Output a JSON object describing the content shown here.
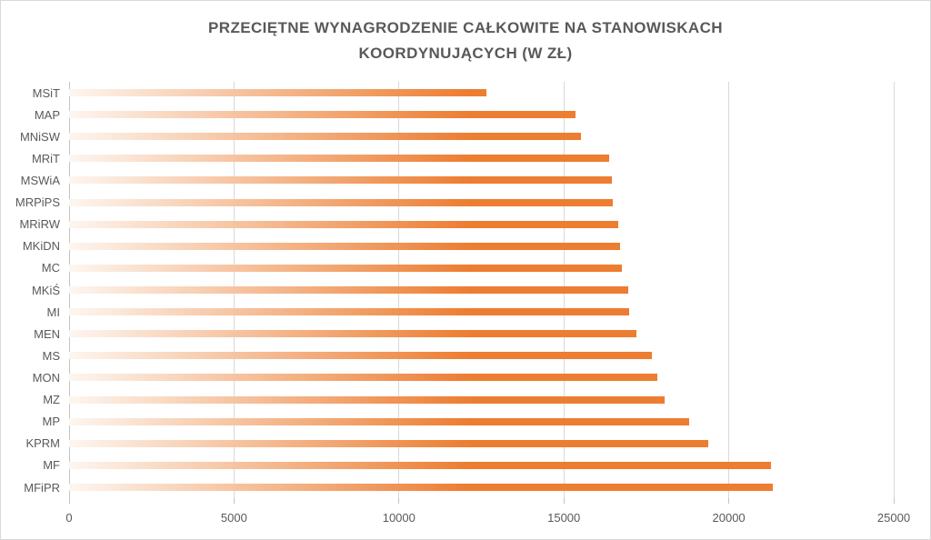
{
  "window": {
    "background": "#FFFFFF",
    "border_color": "#D8D8D8"
  },
  "chart_data": {
    "type": "bar",
    "orientation": "horizontal",
    "title": "PRZECIĘTNE WYNAGRODZENIE CAŁKOWITE NA STANOWISKACH KOORDYNUJĄCYCH (W ZŁ)",
    "title_line1": "PRZECIĘTNE WYNAGRODZENIE CAŁKOWITE NA STANOWISKACH",
    "title_line2": "KOORDYNUJĄCYCH (W ZŁ)",
    "categories": [
      "MSiT",
      "MAP",
      "MNiSW",
      "MRiT",
      "MSWiA",
      "MRPiPS",
      "MRiRW",
      "MKiDN",
      "MC",
      "MKiŚ",
      "MI",
      "MEN",
      "MS",
      "MON",
      "MZ",
      "MP",
      "KPRM",
      "MF",
      "MFiPR"
    ],
    "values": [
      12650,
      15350,
      15520,
      16370,
      16450,
      16490,
      16650,
      16700,
      16760,
      16960,
      16990,
      17200,
      17670,
      17830,
      18050,
      18800,
      19380,
      21270,
      21340
    ],
    "xlabel": "",
    "ylabel": "",
    "xlim": [
      0,
      25000
    ],
    "xticks": [
      0,
      5000,
      10000,
      15000,
      20000,
      25000
    ],
    "grid": "vertical",
    "legend": "none",
    "colors": {
      "bar": "#ED7D31",
      "bar_gradient_start": "#FDF6F0",
      "gridline": "#D9D9D9",
      "axis": "#C3C3C3",
      "text": "#595959"
    }
  }
}
